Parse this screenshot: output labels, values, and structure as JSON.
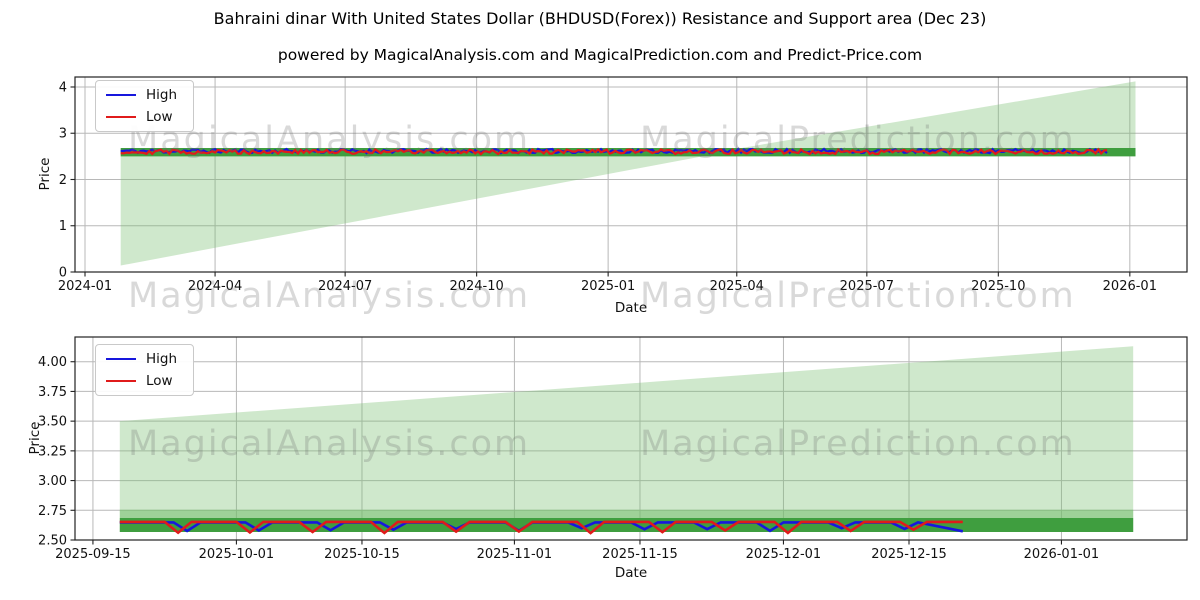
{
  "header": {
    "title": "Bahraini dinar With United States Dollar (BHDUSD(Forex)) Resistance and Support area (Dec 23)",
    "subtitle": "powered by MagicalAnalysis.com and MagicalPrediction.com and Predict-Price.com"
  },
  "watermarks": {
    "left": "MagicalAnalysis.com",
    "right": "MagicalPrediction.com"
  },
  "colors": {
    "high": "#1717dd",
    "low": "#e01b1b",
    "area_light": "rgba(118,190,110,0.35)",
    "band_mid": "rgba(118,190,110,0.55)",
    "band_dark": "#3f9e3f",
    "grid": "#b8b8b8",
    "spine": "#222222",
    "tick_text": "#111111"
  },
  "chart_data": [
    {
      "type": "line",
      "xlabel": "Date",
      "ylabel": "Price",
      "x_domain": [
        "2023-12-25",
        "2026-02-10"
      ],
      "ylim": [
        0,
        4.216
      ],
      "grid": true,
      "legend_position": "upper-left",
      "legend": [
        {
          "label": "High",
          "color": "#1717dd"
        },
        {
          "label": "Low",
          "color": "#e01b1b"
        }
      ],
      "x_ticks": [
        {
          "date": "2024-01-01",
          "label": "2024-01"
        },
        {
          "date": "2024-04-01",
          "label": "2024-04"
        },
        {
          "date": "2024-07-01",
          "label": "2024-07"
        },
        {
          "date": "2024-10-01",
          "label": "2024-10"
        },
        {
          "date": "2025-01-01",
          "label": "2025-01"
        },
        {
          "date": "2025-04-01",
          "label": "2025-04"
        },
        {
          "date": "2025-07-01",
          "label": "2025-07"
        },
        {
          "date": "2025-10-01",
          "label": "2025-10"
        },
        {
          "date": "2026-01-01",
          "label": "2026-01"
        }
      ],
      "y_ticks": [
        {
          "value": 0,
          "label": "0"
        },
        {
          "value": 1,
          "label": "1"
        },
        {
          "value": 2,
          "label": "2"
        },
        {
          "value": 3,
          "label": "3"
        },
        {
          "value": 4,
          "label": "4"
        }
      ],
      "areas": [
        {
          "name": "resistance-support-wedge",
          "color": "rgba(118,190,110,0.35)",
          "points": [
            [
              "2024-01-26",
              0.14
            ],
            [
              "2025-03-20",
              2.57
            ],
            [
              "2026-01-05",
              2.57
            ],
            [
              "2026-01-05",
              4.12
            ],
            [
              "2025-03-20",
              2.6
            ],
            [
              "2024-01-26",
              2.6
            ]
          ]
        },
        {
          "name": "support-band",
          "color": "#3f9e3f",
          "points": [
            [
              "2024-01-26",
              2.5
            ],
            [
              "2026-01-05",
              2.5
            ],
            [
              "2026-01-05",
              2.68
            ],
            [
              "2024-01-26",
              2.68
            ]
          ]
        }
      ],
      "series": [
        {
          "name": "High",
          "color": "#1717dd",
          "kind": "noise",
          "width": 2.2,
          "start": "2024-01-26",
          "end": "2025-12-17",
          "level": 2.615,
          "amplitude": 0.045,
          "step_days": 2,
          "seed": 11
        },
        {
          "name": "Low",
          "color": "#e01b1b",
          "kind": "noise",
          "width": 2.2,
          "start": "2024-01-26",
          "end": "2025-12-17",
          "level": 2.6,
          "amplitude": 0.05,
          "step_days": 2,
          "seed": 29
        }
      ]
    },
    {
      "type": "line",
      "xlabel": "Date",
      "ylabel": "Price",
      "x_domain": [
        "2025-09-13",
        "2026-01-15"
      ],
      "ylim": [
        2.5,
        4.208
      ],
      "grid": true,
      "legend_position": "upper-left",
      "legend": [
        {
          "label": "High",
          "color": "#1717dd"
        },
        {
          "label": "Low",
          "color": "#e01b1b"
        }
      ],
      "x_ticks": [
        {
          "date": "2025-09-15",
          "label": "2025-09-15"
        },
        {
          "date": "2025-10-01",
          "label": "2025-10-01"
        },
        {
          "date": "2025-10-15",
          "label": "2025-10-15"
        },
        {
          "date": "2025-11-01",
          "label": "2025-11-01"
        },
        {
          "date": "2025-11-15",
          "label": "2025-11-15"
        },
        {
          "date": "2025-12-01",
          "label": "2025-12-01"
        },
        {
          "date": "2025-12-15",
          "label": "2025-12-15"
        },
        {
          "date": "2026-01-01",
          "label": "2026-01-01"
        }
      ],
      "y_ticks": [
        {
          "value": 2.5,
          "label": "2.50"
        },
        {
          "value": 2.75,
          "label": "2.75"
        },
        {
          "value": 3.0,
          "label": "3.00"
        },
        {
          "value": 3.25,
          "label": "3.25"
        },
        {
          "value": 3.5,
          "label": "3.50"
        },
        {
          "value": 3.75,
          "label": "3.75"
        },
        {
          "value": 4.0,
          "label": "4.00"
        }
      ],
      "areas": [
        {
          "name": "resistance-support-wedge",
          "color": "rgba(118,190,110,0.35)",
          "points": [
            [
              "2025-09-18",
              2.567
            ],
            [
              "2026-01-09",
              2.567
            ],
            [
              "2026-01-09",
              4.13
            ],
            [
              "2025-09-18",
              3.5
            ]
          ]
        },
        {
          "name": "support-band-soft",
          "color": "rgba(118,190,110,0.55)",
          "points": [
            [
              "2025-09-18",
              2.685
            ],
            [
              "2026-01-09",
              2.685
            ],
            [
              "2026-01-09",
              2.755
            ],
            [
              "2025-09-18",
              2.755
            ]
          ]
        },
        {
          "name": "support-band",
          "color": "#3f9e3f",
          "points": [
            [
              "2025-09-18",
              2.567
            ],
            [
              "2026-01-09",
              2.567
            ],
            [
              "2026-01-09",
              2.685
            ],
            [
              "2025-09-18",
              2.685
            ]
          ]
        }
      ],
      "series": [
        {
          "name": "High",
          "color": "#1717dd",
          "kind": "dips",
          "width": 2.6,
          "start": "2025-09-18",
          "end": "2025-12-21",
          "base": 2.648,
          "depth": 0.062,
          "flat_days": 4,
          "leg_days": 1.5,
          "lead_days": 2,
          "end_drop": true,
          "seed": 5
        },
        {
          "name": "Low",
          "color": "#e01b1b",
          "kind": "dips",
          "width": 2.6,
          "start": "2025-09-18",
          "end": "2025-12-21",
          "base": 2.652,
          "depth": 0.075,
          "flat_days": 4,
          "leg_days": 1.5,
          "lead_days": 0,
          "end_drop": false,
          "seed": 9
        }
      ]
    }
  ]
}
